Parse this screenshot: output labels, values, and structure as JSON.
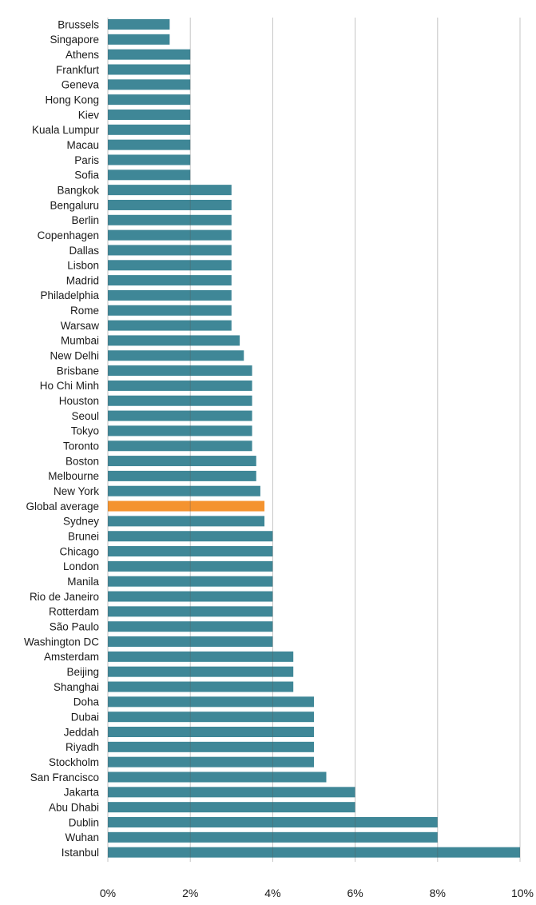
{
  "chart_data": {
    "type": "bar",
    "orientation": "horizontal",
    "title": "",
    "xlabel": "",
    "ylabel": "",
    "xlim": [
      0,
      10
    ],
    "xticks": [
      "0%",
      "2%",
      "4%",
      "6%",
      "8%",
      "10%"
    ],
    "grid": true,
    "legend": "none",
    "colors": {
      "bar": "#3f8797",
      "highlight": "#f4932f",
      "grid": "#555555"
    },
    "categories": [
      "Brussels",
      "Singapore",
      "Athens",
      "Frankfurt",
      "Geneva",
      "Hong Kong",
      "Kiev",
      "Kuala Lumpur",
      "Macau",
      "Paris",
      "Sofia",
      "Bangkok",
      "Bengaluru",
      "Berlin",
      "Copenhagen",
      "Dallas",
      "Lisbon",
      "Madrid",
      "Philadelphia",
      "Rome",
      "Warsaw",
      "Mumbai",
      "New Delhi",
      "Brisbane",
      "Ho Chi Minh",
      "Houston",
      "Seoul",
      "Tokyo",
      "Toronto",
      "Boston",
      "Melbourne",
      "New York",
      "Global average",
      "Sydney",
      "Brunei",
      "Chicago",
      "London",
      "Manila",
      "Rio de Janeiro",
      "Rotterdam",
      "São Paulo",
      "Washington DC",
      "Amsterdam",
      "Beijing",
      "Shanghai",
      "Doha",
      "Dubai",
      "Jeddah",
      "Riyadh",
      "Stockholm",
      "San Francisco",
      "Jakarta",
      "Abu Dhabi",
      "Dublin",
      "Wuhan",
      "Istanbul"
    ],
    "values": [
      1.5,
      1.5,
      2,
      2,
      2,
      2,
      2,
      2,
      2,
      2,
      2,
      3,
      3,
      3,
      3,
      3,
      3,
      3,
      3,
      3,
      3,
      3.2,
      3.3,
      3.5,
      3.5,
      3.5,
      3.5,
      3.5,
      3.5,
      3.6,
      3.6,
      3.7,
      3.8,
      3.8,
      4,
      4,
      4,
      4,
      4,
      4,
      4,
      4,
      4.5,
      4.5,
      4.5,
      5,
      5,
      5,
      5,
      5,
      5.3,
      6,
      6,
      8,
      8,
      10
    ],
    "highlight": "Global average"
  }
}
